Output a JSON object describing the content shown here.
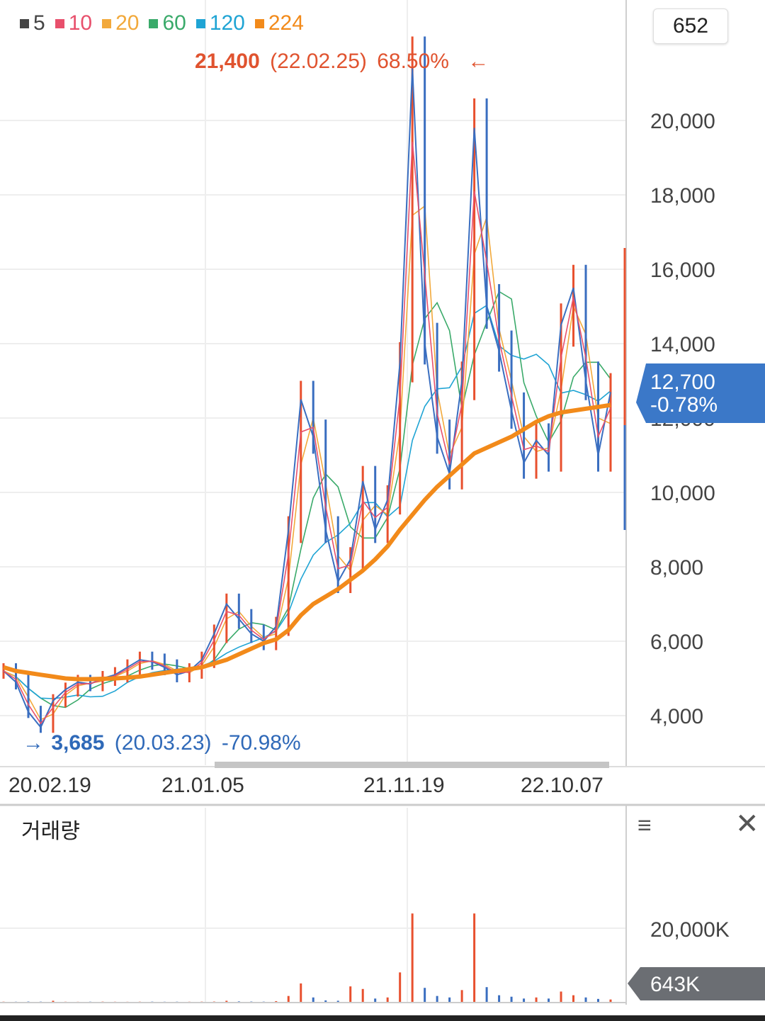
{
  "legend": [
    {
      "label": "5",
      "color": "#444444"
    },
    {
      "label": "10",
      "color": "#e8506c"
    },
    {
      "label": "20",
      "color": "#f2a93b"
    },
    {
      "label": "60",
      "color": "#3aaa6a"
    },
    {
      "label": "120",
      "color": "#1fa4d4"
    },
    {
      "label": "224",
      "color": "#f28a1a"
    }
  ],
  "period_value": "652",
  "high_annotation": {
    "price": "21,400",
    "date": "(22.02.25)",
    "pct": "68.50%",
    "arrow": "←"
  },
  "low_annotation": {
    "arrow": "→",
    "price": "3,685",
    "date": "(20.03.23)",
    "pct": "-70.98%"
  },
  "current_price": {
    "value": "12,700",
    "change": "-0.78%"
  },
  "x_axis_labels": [
    "20.02.19",
    "21.01.05",
    "21.11.19",
    "22.10.07"
  ],
  "volume_panel": {
    "title": "거래량",
    "y_tick": "20,000K",
    "current_volume": "643K",
    "menu_icon": "≡",
    "close_icon": "✕"
  },
  "colors": {
    "up": "#e8502e",
    "down": "#3a6ec0",
    "price_badge": "#3b78c8",
    "volume_badge": "#6b6e73",
    "ma224": "#f28a1a"
  },
  "chart_data": {
    "type": "line",
    "title": "",
    "y_ticks": [
      4000,
      6000,
      8000,
      10000,
      12000,
      14000,
      16000,
      18000,
      20000
    ],
    "y_tick_labels": [
      "4,000",
      "6,000",
      "8,000",
      "10,000",
      "12,000",
      "14,000",
      "16,000",
      "18,000",
      "20,000"
    ],
    "ylim": [
      2600,
      22500
    ],
    "x_range": [
      "2020-01",
      "2022-12"
    ],
    "high": {
      "value": 21400,
      "date": "22.02.25"
    },
    "low": {
      "value": 3685,
      "date": "20.03.23"
    },
    "series": [
      {
        "name": "price",
        "values": [
          5200,
          4900,
          4100,
          3685,
          4400,
          4700,
          4900,
          4850,
          5000,
          5100,
          5300,
          5500,
          5450,
          5300,
          5100,
          5200,
          5500,
          6200,
          7000,
          6600,
          6200,
          6000,
          6400,
          9000,
          12500,
          11500,
          9000,
          7600,
          8200,
          10300,
          9000,
          9800,
          13500,
          21400,
          14000,
          11500,
          10500,
          13000,
          19800,
          15000,
          13800,
          12200,
          10800,
          11400,
          11000,
          14500,
          15500,
          13000,
          11000,
          12700
        ]
      },
      {
        "name": "224",
        "values": [
          5300,
          5200,
          5150,
          5100,
          5050,
          5000,
          4980,
          4980,
          4990,
          5000,
          5020,
          5050,
          5100,
          5150,
          5200,
          5250,
          5300,
          5400,
          5500,
          5650,
          5800,
          5950,
          6050,
          6300,
          6700,
          7000,
          7200,
          7400,
          7650,
          7900,
          8200,
          8550,
          9000,
          9400,
          9800,
          10150,
          10450,
          10750,
          11050,
          11200,
          11350,
          11500,
          11700,
          11900,
          12050,
          12150,
          12200,
          12250,
          12300,
          12350
        ]
      }
    ],
    "volume": {
      "ylim": [
        0,
        26000
      ],
      "tick": 20000,
      "values": [
        50,
        40,
        80,
        60,
        300,
        40,
        30,
        50,
        60,
        40,
        30,
        50,
        60,
        40,
        50,
        40,
        60,
        80,
        300,
        120,
        80,
        60,
        200,
        1600,
        5000,
        1200,
        400,
        300,
        4200,
        3500,
        900,
        1200,
        8000,
        24000,
        3800,
        1600,
        1200,
        3200,
        24000,
        4000,
        1800,
        1400,
        900,
        1200,
        900,
        2800,
        1800,
        1200,
        800,
        643
      ]
    }
  }
}
